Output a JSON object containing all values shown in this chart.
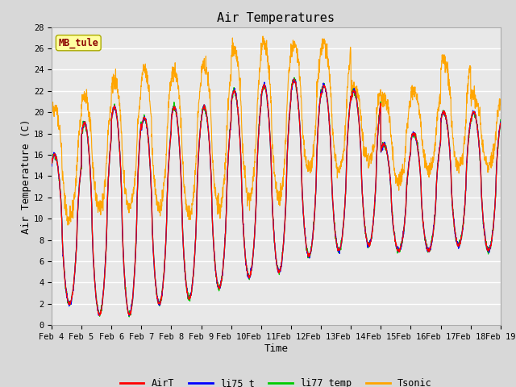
{
  "title": "Air Temperatures",
  "xlabel": "Time",
  "ylabel": "Air Temperature (C)",
  "ylim": [
    0,
    28
  ],
  "xtick_labels": [
    "Feb 4",
    "Feb 5",
    "Feb 6",
    "Feb 7",
    "Feb 8",
    "Feb 9",
    "Feb 10",
    "Feb 11",
    "Feb 12",
    "Feb 13",
    "Feb 14",
    "Feb 15",
    "Feb 16",
    "Feb 17",
    "Feb 18",
    "Feb 19"
  ],
  "site_label": "MB_tule",
  "series_colors": {
    "AirT": "#ff0000",
    "li75_t": "#0000ff",
    "li77_temp": "#00cc00",
    "Tsonic": "#ffa500"
  },
  "bg_color": "#e8e8e8",
  "grid_color": "#ffffff",
  "title_fontsize": 11,
  "axis_label_fontsize": 9,
  "tick_fontsize": 7.5,
  "legend_fontsize": 8.5,
  "day_mins": [
    2.0,
    1.0,
    1.0,
    2.0,
    2.5,
    3.5,
    4.5,
    5.0,
    6.5,
    7.0,
    7.5,
    7.0,
    7.0,
    7.5,
    7.0
  ],
  "day_maxs": [
    16.0,
    19.0,
    20.5,
    19.5,
    20.5,
    20.5,
    22.0,
    22.5,
    23.0,
    22.5,
    22.0,
    17.0,
    18.0,
    20.0,
    20.0
  ],
  "tsonic_mins": [
    10.0,
    11.0,
    11.0,
    11.0,
    10.5,
    11.0,
    12.0,
    12.0,
    14.5,
    14.5,
    15.5,
    13.5,
    14.5,
    15.0,
    15.0
  ],
  "tsonic_maxs": [
    20.5,
    21.5,
    23.0,
    24.0,
    24.0,
    24.5,
    26.0,
    26.5,
    26.5,
    26.5,
    22.5,
    21.5,
    22.0,
    25.0,
    21.5
  ]
}
